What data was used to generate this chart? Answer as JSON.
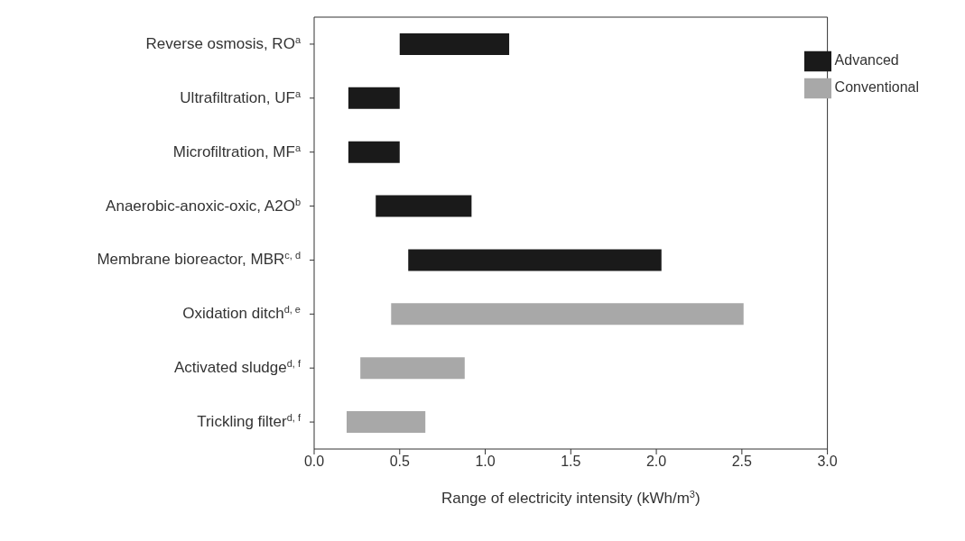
{
  "chart_data": {
    "type": "bar",
    "orientation": "horizontal",
    "categories": [
      "Reverse osmosis, RO$^{a}$",
      "Ultrafiltration, UF$^{a}$",
      "Microfiltration, MF$^{a}$",
      "Anaerobic-anoxic-oxic, A2O$^{b}$",
      "Membrane bioreactor, MBR$^{c, d}$",
      "Oxidation ditch$^{d, e}$",
      "Activated sludge$^{d, f}$",
      "Trickling filter$^{d, f}$"
    ],
    "series": [
      {
        "name": "Advanced",
        "color": "#1a1a1a",
        "base": [
          0.5,
          0.2,
          0.2,
          0.36,
          0.55,
          null,
          null,
          null
        ],
        "values": [
          0.64,
          0.3,
          0.3,
          0.56,
          1.48,
          null,
          null,
          null
        ]
      },
      {
        "name": "Conventional",
        "color": "#a8a8a8",
        "base": [
          null,
          null,
          null,
          null,
          null,
          0.45,
          0.27,
          0.19
        ],
        "values": [
          null,
          null,
          null,
          null,
          null,
          2.06,
          0.61,
          0.46
        ]
      }
    ],
    "xlabel": "Range of electricity intensity (kWh/m$^{3}$)",
    "xlim": [
      0,
      3
    ],
    "xticks": [
      {
        "value": 0,
        "label": "0.0"
      },
      0.5,
      {
        "value": 1,
        "label": "1.0"
      },
      1.5,
      {
        "value": 2,
        "label": "2.0"
      },
      2.5,
      {
        "value": 3,
        "label": "3.0"
      }
    ],
    "legend": "top right",
    "grid": false
  }
}
